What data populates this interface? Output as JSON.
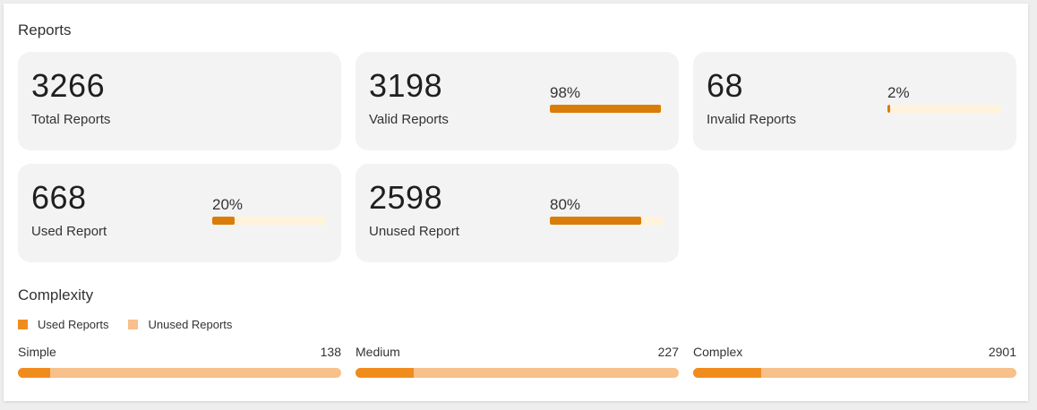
{
  "reports_title": "Reports",
  "cards": {
    "total": {
      "value": "3266",
      "label": "Total Reports"
    },
    "valid": {
      "value": "3198",
      "label": "Valid Reports",
      "percent": "98%",
      "fraction": 0.98
    },
    "invalid": {
      "value": "68",
      "label": "Invalid Reports",
      "percent": "2%",
      "fraction": 0.02
    },
    "used": {
      "value": "668",
      "label": "Used Report",
      "percent": "20%",
      "fraction": 0.2
    },
    "unused": {
      "value": "2598",
      "label": "Unused Report",
      "percent": "80%",
      "fraction": 0.8
    }
  },
  "complexity_title": "Complexity",
  "legend": {
    "used": {
      "label": "Used Reports",
      "color": "#f08c1e"
    },
    "unused": {
      "label": "Unused Reports",
      "color": "#f8c08a"
    }
  },
  "complexity": [
    {
      "name": "Simple",
      "count": "138",
      "used_fraction": 0.1
    },
    {
      "name": "Medium",
      "count": "227",
      "used_fraction": 0.18
    },
    {
      "name": "Complex",
      "count": "2901",
      "used_fraction": 0.21
    }
  ],
  "colors": {
    "accent": "#d97d08",
    "bar_track": "#fff3dc",
    "card_bg": "#f3f3f3"
  }
}
